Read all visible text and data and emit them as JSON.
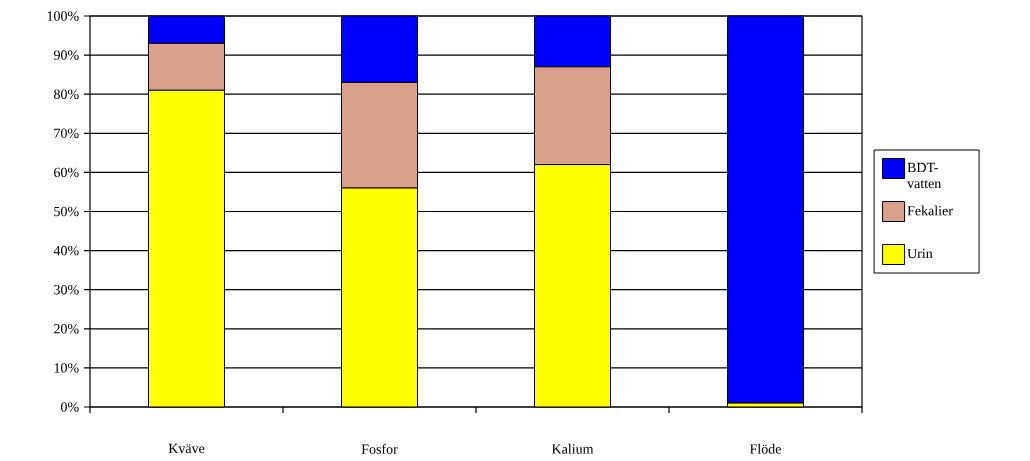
{
  "chart_data": {
    "type": "bar",
    "stacked": true,
    "categories": [
      "Kväve",
      "Fosfor",
      "Kalium",
      "Flöde"
    ],
    "series": [
      {
        "name": "Urin",
        "color": "#ffff00",
        "values": [
          81,
          56,
          62,
          1
        ]
      },
      {
        "name": "Fekalier",
        "color": "#d9a08c",
        "values": [
          12,
          27,
          25,
          0
        ]
      },
      {
        "name": "BDT-vatten",
        "color": "#0000ff",
        "values": [
          7,
          17,
          13,
          99
        ]
      }
    ],
    "ylim": [
      0,
      100
    ],
    "yticks": [
      {
        "value": 0,
        "label": "0%"
      },
      {
        "value": 10,
        "label": "10%"
      },
      {
        "value": 20,
        "label": "20%"
      },
      {
        "value": 30,
        "label": "30%"
      },
      {
        "value": 40,
        "label": "40%"
      },
      {
        "value": 50,
        "label": "50%"
      },
      {
        "value": 60,
        "label": "60%"
      },
      {
        "value": 70,
        "label": "70%"
      },
      {
        "value": 80,
        "label": "80%"
      },
      {
        "value": 90,
        "label": "90%"
      },
      {
        "value": 100,
        "label": "100%"
      }
    ],
    "grid": "y",
    "legend": "right"
  }
}
